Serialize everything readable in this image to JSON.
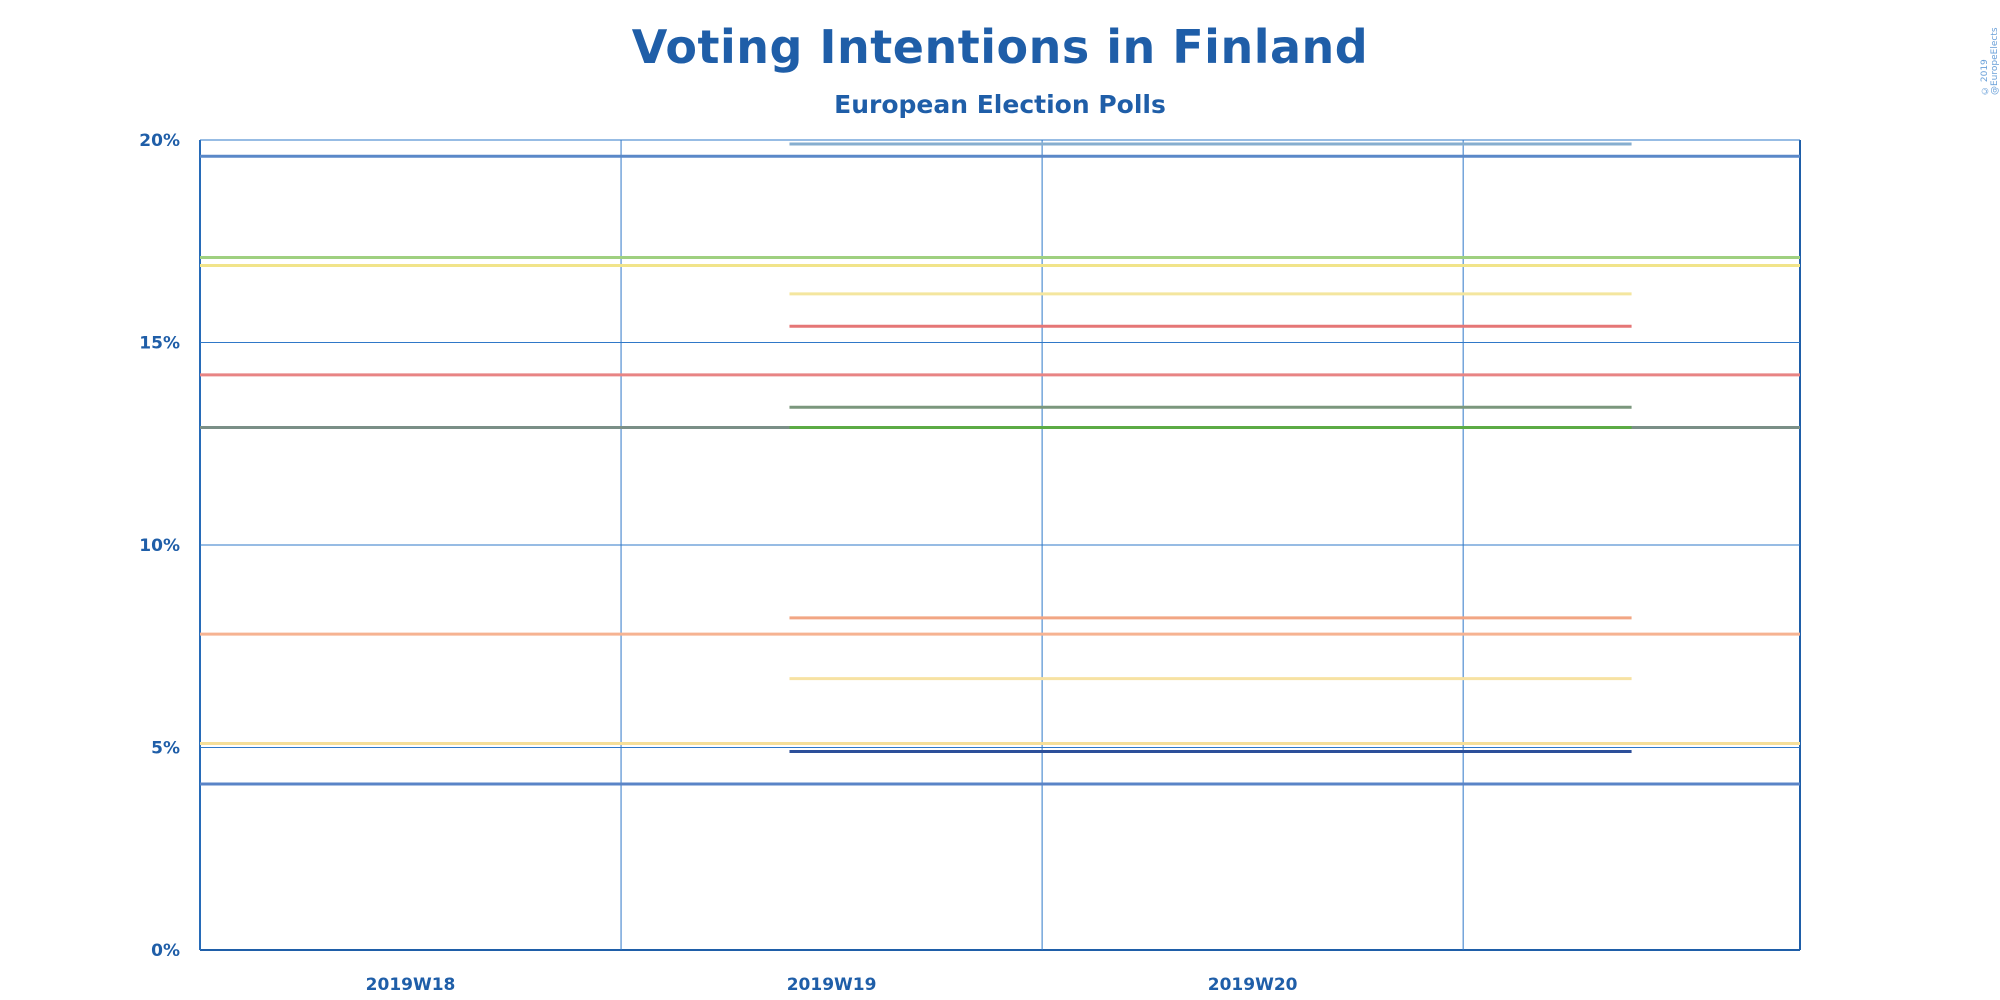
{
  "title": "Voting Intentions in Finland",
  "subtitle": "European Election Polls",
  "copyright": "© 2019 @EuropeElects",
  "chart_data": {
    "type": "line",
    "title": "Voting Intentions in Finland",
    "subtitle": "European Election Polls",
    "x": [
      "2019W18",
      "2019W19",
      "2019W20"
    ],
    "ylim": [
      0,
      20
    ],
    "y_ticks": [
      "0%",
      "5%",
      "10%",
      "15%",
      "20%"
    ],
    "grid": true,
    "series": [
      {
        "color": "#5a88c8",
        "segments": [
          {
            "x": [
              "2019W17.5",
              "2019W21.3"
            ],
            "value": 19.6
          }
        ]
      },
      {
        "color": "#86aecf",
        "segments": [
          {
            "x": [
              "2019W18.9",
              "2019W20.9"
            ],
            "value": 19.9
          }
        ]
      },
      {
        "color": "#9fd080",
        "segments": [
          {
            "x": [
              "2019W17.5",
              "2019W21.3"
            ],
            "value": 17.1
          }
        ]
      },
      {
        "color": "#f1e48a",
        "segments": [
          {
            "x": [
              "2019W17.5",
              "2019W21.3"
            ],
            "value": 16.9
          }
        ]
      },
      {
        "color": "#f4e69f",
        "segments": [
          {
            "x": [
              "2019W18.9",
              "2019W20.9"
            ],
            "value": 16.2
          }
        ]
      },
      {
        "color": "#e57676",
        "segments": [
          {
            "x": [
              "2019W18.9",
              "2019W20.9"
            ],
            "value": 15.4
          }
        ]
      },
      {
        "color": "#e88484",
        "segments": [
          {
            "x": [
              "2019W17.5",
              "2019W21.3"
            ],
            "value": 14.2
          }
        ]
      },
      {
        "color": "#7b977d",
        "segments": [
          {
            "x": [
              "2019W18.9",
              "2019W20.9"
            ],
            "value": 13.4
          }
        ]
      },
      {
        "color": "#7a8f87",
        "segments": [
          {
            "x": [
              "2019W17.5",
              "2019W21.3"
            ],
            "value": 12.9
          }
        ]
      },
      {
        "color": "#5cab45",
        "segments": [
          {
            "x": [
              "2019W18.9",
              "2019W20.9"
            ],
            "value": 12.9
          }
        ]
      },
      {
        "color": "#f2a684",
        "segments": [
          {
            "x": [
              "2019W18.9",
              "2019W20.9"
            ],
            "value": 8.2
          }
        ]
      },
      {
        "color": "#f6b392",
        "segments": [
          {
            "x": [
              "2019W17.5",
              "2019W21.3"
            ],
            "value": 7.8
          }
        ]
      },
      {
        "color": "#f7e2a3",
        "segments": [
          {
            "x": [
              "2019W18.9",
              "2019W20.9"
            ],
            "value": 6.7
          }
        ]
      },
      {
        "color": "#f6df9a",
        "segments": [
          {
            "x": [
              "2019W17.5",
              "2019W21.3"
            ],
            "value": 5.1
          }
        ]
      },
      {
        "color": "#2c4f9a",
        "segments": [
          {
            "x": [
              "2019W18.9",
              "2019W20.9"
            ],
            "value": 4.9
          }
        ]
      },
      {
        "color": "#5a84c7",
        "segments": [
          {
            "x": [
              "2019W17.5",
              "2019W21.3"
            ],
            "value": 4.1
          }
        ]
      }
    ]
  }
}
